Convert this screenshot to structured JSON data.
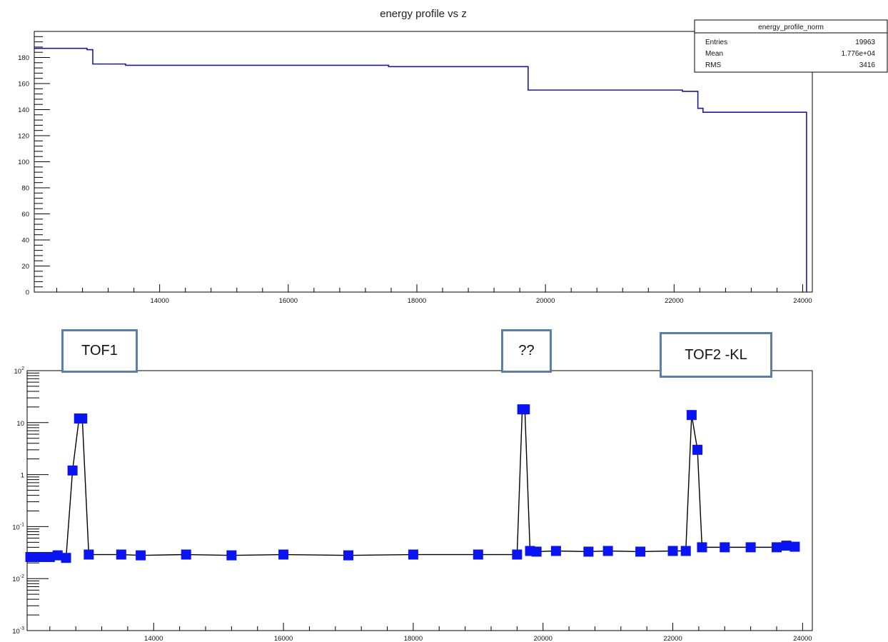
{
  "chart_data": [
    {
      "type": "line",
      "title": "energy profile vs z",
      "xlim": [
        12050,
        24150
      ],
      "ylim": [
        0,
        200
      ],
      "x_ticks": [
        14000,
        16000,
        18000,
        20000,
        22000,
        24000
      ],
      "y_ticks": [
        0,
        20,
        40,
        60,
        80,
        100,
        120,
        140,
        160,
        180
      ],
      "grid": false,
      "step": true,
      "series": [
        {
          "color": "#1b1b9a",
          "x": [
            12050,
            12870,
            12960,
            13470,
            17560,
            19730,
            22130,
            22370,
            22450,
            24010,
            24060
          ],
          "y": [
            187,
            186,
            175,
            174,
            173,
            155,
            154,
            141,
            138,
            138,
            0
          ]
        }
      ],
      "stats_box": {
        "name": "energy_profile_norm",
        "rows": [
          {
            "label": "Entries",
            "value": "19963"
          },
          {
            "label": "Mean",
            "value": "1.776e+04"
          },
          {
            "label": "RMS",
            "value": "3416"
          }
        ]
      }
    },
    {
      "type": "scatter",
      "log_y": true,
      "xlim": [
        12050,
        24150
      ],
      "ylim": [
        0.001,
        100
      ],
      "x_ticks": [
        14000,
        16000,
        18000,
        20000,
        22000,
        24000
      ],
      "y_tick_labels": [
        {
          "value": 100,
          "base": "10",
          "exp": "2"
        },
        {
          "value": 10,
          "base": "10",
          "exp": ""
        },
        {
          "value": 1,
          "base": "1",
          "exp": ""
        },
        {
          "value": 0.1,
          "base": "10",
          "exp": "-1"
        },
        {
          "value": 0.01,
          "base": "10",
          "exp": "-2"
        },
        {
          "value": 0.001,
          "base": "10",
          "exp": "-3"
        }
      ],
      "grid": false,
      "marker_color": "#0a14f0",
      "line_color": "#000000",
      "points": [
        {
          "x": 12100,
          "y": 0.026
        },
        {
          "x": 12200,
          "y": 0.026
        },
        {
          "x": 12300,
          "y": 0.026
        },
        {
          "x": 12400,
          "y": 0.026
        },
        {
          "x": 12520,
          "y": 0.028
        },
        {
          "x": 12650,
          "y": 0.025
        },
        {
          "x": 12750,
          "y": 1.2
        },
        {
          "x": 12850,
          "y": 12
        },
        {
          "x": 12900,
          "y": 12
        },
        {
          "x": 13000,
          "y": 0.029
        },
        {
          "x": 13500,
          "y": 0.029
        },
        {
          "x": 13800,
          "y": 0.028
        },
        {
          "x": 14500,
          "y": 0.029
        },
        {
          "x": 15200,
          "y": 0.028
        },
        {
          "x": 16000,
          "y": 0.029
        },
        {
          "x": 17000,
          "y": 0.028
        },
        {
          "x": 18000,
          "y": 0.029
        },
        {
          "x": 19000,
          "y": 0.029
        },
        {
          "x": 19600,
          "y": 0.029
        },
        {
          "x": 19680,
          "y": 18
        },
        {
          "x": 19720,
          "y": 18
        },
        {
          "x": 19800,
          "y": 0.034
        },
        {
          "x": 19900,
          "y": 0.033
        },
        {
          "x": 20200,
          "y": 0.034
        },
        {
          "x": 20700,
          "y": 0.033
        },
        {
          "x": 21000,
          "y": 0.034
        },
        {
          "x": 21500,
          "y": 0.033
        },
        {
          "x": 22000,
          "y": 0.034
        },
        {
          "x": 22200,
          "y": 0.034
        },
        {
          "x": 22290,
          "y": 14
        },
        {
          "x": 22380,
          "y": 3
        },
        {
          "x": 22450,
          "y": 0.04
        },
        {
          "x": 22800,
          "y": 0.04
        },
        {
          "x": 23200,
          "y": 0.04
        },
        {
          "x": 23600,
          "y": 0.04
        },
        {
          "x": 23750,
          "y": 0.043
        },
        {
          "x": 23880,
          "y": 0.041
        }
      ],
      "annotations": [
        {
          "text": "TOF1"
        },
        {
          "text": "??"
        },
        {
          "text": "TOF2 -KL"
        }
      ]
    }
  ]
}
